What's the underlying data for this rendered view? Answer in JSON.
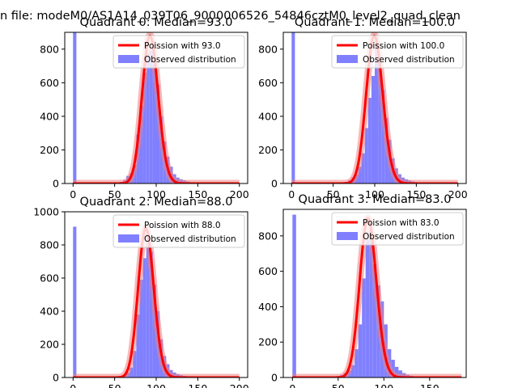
{
  "figure": {
    "title": "n file: modeM0/AS1A14_039T06_9000006526_54846cztM0_level2_quad_clean"
  },
  "colors": {
    "histogram": "#8080ff",
    "poisson_line": "#ff0000",
    "poisson_shadow": "#f08080",
    "axes": "#000000",
    "background": "#ffffff"
  },
  "chart_data": [
    {
      "type": "bar",
      "title": "Quadrant 0: Median=93.0",
      "xlim": [
        -10,
        210
      ],
      "ylim": [
        0,
        900
      ],
      "xticks": [
        0,
        50,
        100,
        150,
        200
      ],
      "yticks": [
        0,
        200,
        400,
        600,
        800
      ],
      "legend_placement": "upper right",
      "grid": false,
      "series": [
        {
          "name": "Poission with 93.0",
          "kind": "line",
          "mean": 93.0,
          "peak": 880,
          "x_range": [
            0,
            200
          ]
        },
        {
          "name": "Observed distribution",
          "kind": "histogram",
          "bin_width": 4,
          "bins": [
            [
              0,
              910
            ],
            [
              56,
              10
            ],
            [
              60,
              20
            ],
            [
              64,
              45
            ],
            [
              68,
              60
            ],
            [
              72,
              110
            ],
            [
              76,
              290
            ],
            [
              80,
              460
            ],
            [
              84,
              660
            ],
            [
              88,
              780
            ],
            [
              92,
              800
            ],
            [
              96,
              710
            ],
            [
              100,
              590
            ],
            [
              104,
              400
            ],
            [
              108,
              250
            ],
            [
              112,
              160
            ],
            [
              116,
              100
            ],
            [
              120,
              55
            ],
            [
              124,
              35
            ],
            [
              128,
              25
            ],
            [
              132,
              18
            ],
            [
              136,
              12
            ],
            [
              140,
              8
            ],
            [
              144,
              5
            ],
            [
              148,
              3
            ]
          ]
        }
      ]
    },
    {
      "type": "bar",
      "title": "Quadrant 1: Median=100.0",
      "xlim": [
        -10,
        210
      ],
      "ylim": [
        0,
        900
      ],
      "xticks": [
        0,
        50,
        100,
        150,
        200
      ],
      "yticks": [
        0,
        200,
        400,
        600,
        800
      ],
      "legend_placement": "upper right",
      "grid": false,
      "series": [
        {
          "name": "Poission with 100.0",
          "kind": "line",
          "mean": 100.0,
          "peak": 880,
          "x_range": [
            0,
            200
          ]
        },
        {
          "name": "Observed distribution",
          "kind": "histogram",
          "bin_width": 4,
          "bins": [
            [
              0,
              920
            ],
            [
              64,
              10
            ],
            [
              68,
              20
            ],
            [
              72,
              35
            ],
            [
              76,
              55
            ],
            [
              80,
              100
            ],
            [
              84,
              180
            ],
            [
              88,
              330
            ],
            [
              92,
              510
            ],
            [
              96,
              640
            ],
            [
              100,
              860
            ],
            [
              104,
              720
            ],
            [
              108,
              560
            ],
            [
              112,
              390
            ],
            [
              116,
              260
            ],
            [
              120,
              150
            ],
            [
              124,
              90
            ],
            [
              128,
              55
            ],
            [
              132,
              35
            ],
            [
              136,
              25
            ],
            [
              140,
              18
            ],
            [
              144,
              12
            ],
            [
              148,
              8
            ],
            [
              152,
              5
            ],
            [
              156,
              3
            ]
          ]
        }
      ]
    },
    {
      "type": "bar",
      "title": "Quadrant 2: Median=88.0",
      "xlim": [
        -10,
        210
      ],
      "ylim": [
        0,
        1000
      ],
      "xticks": [
        0,
        50,
        100,
        150,
        200
      ],
      "yticks": [
        0,
        200,
        400,
        600,
        800,
        1000
      ],
      "legend_placement": "upper right",
      "grid": false,
      "series": [
        {
          "name": "Poission with 88.0",
          "kind": "line",
          "mean": 88.0,
          "peak": 900,
          "x_range": [
            0,
            200
          ]
        },
        {
          "name": "Observed distribution",
          "kind": "histogram",
          "bin_width": 4,
          "bins": [
            [
              0,
              910
            ],
            [
              60,
              15
            ],
            [
              64,
              30
            ],
            [
              68,
              60
            ],
            [
              72,
              160
            ],
            [
              76,
              380
            ],
            [
              80,
              590
            ],
            [
              84,
              720
            ],
            [
              88,
              860
            ],
            [
              92,
              760
            ],
            [
              96,
              560
            ],
            [
              100,
              400
            ],
            [
              104,
              230
            ],
            [
              108,
              130
            ],
            [
              112,
              80
            ],
            [
              116,
              45
            ],
            [
              120,
              30
            ],
            [
              124,
              20
            ],
            [
              128,
              14
            ],
            [
              132,
              10
            ],
            [
              136,
              7
            ],
            [
              140,
              5
            ],
            [
              144,
              3
            ]
          ]
        }
      ]
    },
    {
      "type": "bar",
      "title": "Quadrant 3: Median=83.0",
      "xlim": [
        -10,
        190
      ],
      "ylim": [
        0,
        950
      ],
      "xticks": [
        0,
        50,
        100,
        150
      ],
      "yticks": [
        0,
        200,
        400,
        600,
        800
      ],
      "legend_placement": "upper right",
      "grid": false,
      "series": [
        {
          "name": "Poission with 83.0",
          "kind": "line",
          "mean": 83.0,
          "peak": 900,
          "x_range": [
            0,
            185
          ]
        },
        {
          "name": "Observed distribution",
          "kind": "histogram",
          "bin_width": 4,
          "bins": [
            [
              0,
              920
            ],
            [
              48,
              8
            ],
            [
              52,
              15
            ],
            [
              56,
              25
            ],
            [
              60,
              40
            ],
            [
              64,
              70
            ],
            [
              68,
              160
            ],
            [
              72,
              300
            ],
            [
              76,
              560
            ],
            [
              80,
              780
            ],
            [
              84,
              830
            ],
            [
              88,
              640
            ],
            [
              92,
              520
            ],
            [
              96,
              430
            ],
            [
              100,
              300
            ],
            [
              104,
              160
            ],
            [
              108,
              100
            ],
            [
              112,
              60
            ],
            [
              116,
              40
            ],
            [
              120,
              25
            ],
            [
              124,
              15
            ],
            [
              128,
              10
            ],
            [
              132,
              6
            ],
            [
              136,
              4
            ],
            [
              140,
              3
            ]
          ]
        }
      ]
    }
  ]
}
